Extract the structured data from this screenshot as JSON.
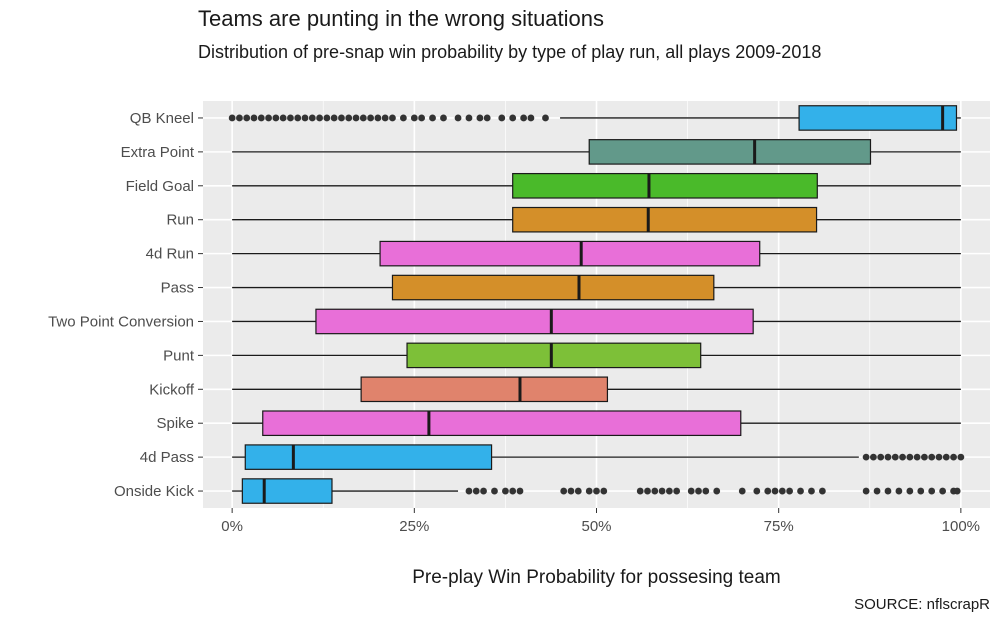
{
  "chart_data": {
    "type": "boxplot",
    "title": "Teams are punting in the wrong situations",
    "subtitle": "Distribution of pre-snap win probability by type of play run, all plays 2009-2018",
    "xlabel": "Pre-play Win Probability for possesing team",
    "ylabel": "",
    "caption": "SOURCE: nflscrapR",
    "xlim": [
      -0.04,
      1.04
    ],
    "x_ticks": [
      {
        "value": 0,
        "label": "0%"
      },
      {
        "value": 0.25,
        "label": "25%"
      },
      {
        "value": 0.5,
        "label": "50%"
      },
      {
        "value": 0.75,
        "label": "75%"
      },
      {
        "value": 1,
        "label": "100%"
      }
    ],
    "grid": true,
    "background": "#ebebeb",
    "categories": [
      {
        "name": "QB Kneel",
        "color": "#33b1ea",
        "min": 0.45,
        "q1": 0.778,
        "median": 0.975,
        "q3": 0.994,
        "max": 1.0,
        "outliers": [
          0.0,
          0.01,
          0.02,
          0.03,
          0.04,
          0.05,
          0.06,
          0.07,
          0.08,
          0.09,
          0.1,
          0.11,
          0.12,
          0.13,
          0.14,
          0.15,
          0.16,
          0.17,
          0.18,
          0.19,
          0.2,
          0.21,
          0.22,
          0.235,
          0.25,
          0.26,
          0.275,
          0.29,
          0.31,
          0.325,
          0.34,
          0.35,
          0.37,
          0.385,
          0.4,
          0.41,
          0.43
        ]
      },
      {
        "name": "Extra Point",
        "color": "#62998a",
        "min": 0.0,
        "q1": 0.49,
        "median": 0.717,
        "q3": 0.876,
        "max": 1.0,
        "outliers": []
      },
      {
        "name": "Field Goal",
        "color": "#4aba2a",
        "min": 0.0,
        "q1": 0.385,
        "median": 0.572,
        "q3": 0.803,
        "max": 1.0,
        "outliers": []
      },
      {
        "name": "Run",
        "color": "#d48f29",
        "min": 0.0,
        "q1": 0.385,
        "median": 0.571,
        "q3": 0.802,
        "max": 1.0,
        "outliers": []
      },
      {
        "name": "4d Run",
        "color": "#e86fd8",
        "min": 0.0,
        "q1": 0.203,
        "median": 0.479,
        "q3": 0.724,
        "max": 1.0,
        "outliers": []
      },
      {
        "name": "Pass",
        "color": "#d48f29",
        "min": 0.0,
        "q1": 0.22,
        "median": 0.476,
        "q3": 0.661,
        "max": 1.0,
        "outliers": []
      },
      {
        "name": "Two Point Conversion",
        "color": "#e86fd8",
        "min": 0.0,
        "q1": 0.115,
        "median": 0.438,
        "q3": 0.715,
        "max": 1.0,
        "outliers": []
      },
      {
        "name": "Punt",
        "color": "#7dc038",
        "min": 0.0,
        "q1": 0.24,
        "median": 0.438,
        "q3": 0.643,
        "max": 1.0,
        "outliers": []
      },
      {
        "name": "Kickoff",
        "color": "#e0836c",
        "min": 0.0,
        "q1": 0.177,
        "median": 0.395,
        "q3": 0.515,
        "max": 1.0,
        "outliers": []
      },
      {
        "name": "Spike",
        "color": "#e86fd8",
        "min": 0.0,
        "q1": 0.042,
        "median": 0.27,
        "q3": 0.698,
        "max": 1.0,
        "outliers": []
      },
      {
        "name": "4d Pass",
        "color": "#33b1ea",
        "min": 0.0,
        "q1": 0.018,
        "median": 0.084,
        "q3": 0.356,
        "max": 0.86,
        "outliers": [
          0.87,
          0.88,
          0.89,
          0.9,
          0.91,
          0.92,
          0.93,
          0.94,
          0.95,
          0.96,
          0.97,
          0.98,
          0.99,
          1.0
        ]
      },
      {
        "name": "Onside Kick",
        "color": "#33b1ea",
        "min": 0.0,
        "q1": 0.014,
        "median": 0.044,
        "q3": 0.137,
        "max": 0.31,
        "outliers": [
          0.325,
          0.335,
          0.345,
          0.36,
          0.375,
          0.385,
          0.395,
          0.455,
          0.465,
          0.475,
          0.49,
          0.5,
          0.51,
          0.56,
          0.57,
          0.58,
          0.59,
          0.6,
          0.61,
          0.63,
          0.64,
          0.65,
          0.665,
          0.7,
          0.72,
          0.735,
          0.745,
          0.755,
          0.765,
          0.78,
          0.795,
          0.81,
          0.87,
          0.885,
          0.9,
          0.915,
          0.93,
          0.945,
          0.96,
          0.975,
          0.99,
          0.995
        ]
      }
    ]
  }
}
